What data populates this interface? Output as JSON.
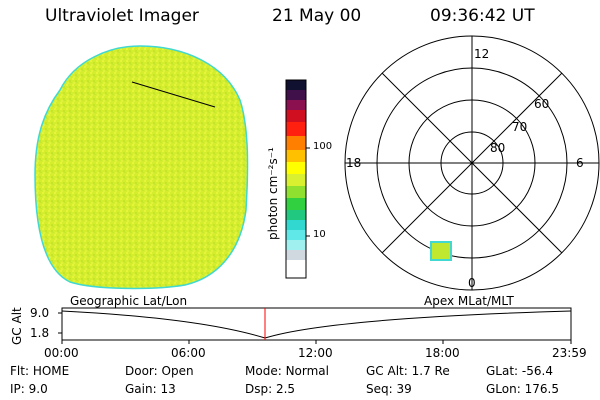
{
  "header": {
    "title": "Ultraviolet Imager",
    "date": "21 May 00",
    "time": "09:36:42 UT"
  },
  "colorbar": {
    "unit_label": "photon cm⁻²s⁻¹",
    "ticks": [
      "100",
      "10"
    ]
  },
  "polar_plot": {
    "mlt_labels": {
      "top": "12",
      "bottom": "0",
      "left": "18",
      "right": "6"
    },
    "lat_labels": [
      "60",
      "70",
      "80"
    ]
  },
  "timeline": {
    "left_title": "Geographic Lat/Lon",
    "right_title": "Apex MLat/MLT",
    "yaxis_label": "GC Alt",
    "y_ticks": [
      "9.0",
      "1.8"
    ],
    "x_ticks": [
      "00:00",
      "06:00",
      "12:00",
      "18:00",
      "23:59"
    ],
    "current_time_fraction": 0.4
  },
  "status": {
    "row1": [
      {
        "label": "Flt:",
        "value": "HOME"
      },
      {
        "label": "Door:",
        "value": "Open"
      },
      {
        "label": "Mode:",
        "value": "Normal"
      },
      {
        "label": "GC Alt:",
        "value": "1.7 Re"
      },
      {
        "label": "GLat:",
        "value": "-56.4"
      }
    ],
    "row2": [
      {
        "label": "IP:",
        "value": "9.0"
      },
      {
        "label": "Gain:",
        "value": "13"
      },
      {
        "label": "Dsp:",
        "value": "2.5"
      },
      {
        "label": "Seq:",
        "value": "39"
      },
      {
        "label": "GLon:",
        "value": "176.5"
      }
    ]
  },
  "colors": {
    "earth_fill": "#d6f030",
    "earth_edge": "#40d8d0",
    "marker": "#ff0000"
  }
}
